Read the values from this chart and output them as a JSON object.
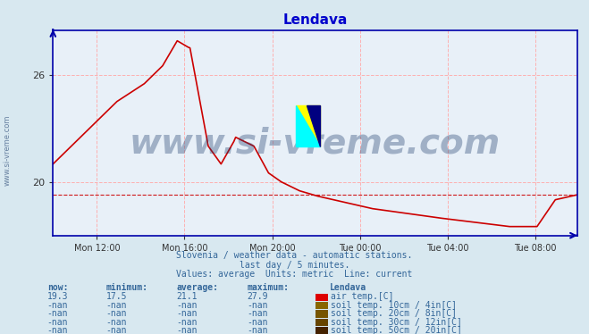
{
  "title": "Lendava",
  "title_color": "#0000cc",
  "bg_color": "#d8e8f0",
  "plot_bg_color": "#e8f0f8",
  "line_color": "#cc0000",
  "line_width": 1.2,
  "avg_line_color": "#cc0000",
  "avg_line_style": "--",
  "avg_value": 19.3,
  "y_min": 17.0,
  "y_max": 28.5,
  "yticks": [
    20,
    26
  ],
  "grid_color": "#ffaaaa",
  "grid_style": "--",
  "axis_color": "#0000aa",
  "xtick_labels": [
    "Mon 12:00",
    "Mon 16:00",
    "Mon 20:00",
    "Tue 00:00",
    "Tue 04:00",
    "Tue 08:00"
  ],
  "watermark": "www.si-vreme.com",
  "watermark_color": "#1a3a6a",
  "watermark_alpha": 0.35,
  "subtitle1": "Slovenia / weather data - automatic stations.",
  "subtitle2": "last day / 5 minutes.",
  "subtitle3": "Values: average  Units: metric  Line: current",
  "subtitle_color": "#336699",
  "legend_title": "Lendava",
  "legend_items": [
    {
      "label": "air temp.[C]",
      "color": "#dd0000"
    },
    {
      "label": "soil temp. 10cm / 4in[C]",
      "color": "#886600"
    },
    {
      "label": "soil temp. 20cm / 8in[C]",
      "color": "#775500"
    },
    {
      "label": "soil temp. 30cm / 12in[C]",
      "color": "#664400"
    },
    {
      "label": "soil temp. 50cm / 20in[C]",
      "color": "#442200"
    }
  ],
  "table_headers": [
    "now:",
    "minimum:",
    "average:",
    "maximum:"
  ],
  "table_rows": [
    [
      "19.3",
      "17.5",
      "21.1",
      "27.9"
    ],
    [
      "-nan",
      "-nan",
      "-nan",
      "-nan"
    ],
    [
      "-nan",
      "-nan",
      "-nan",
      "-nan"
    ],
    [
      "-nan",
      "-nan",
      "-nan",
      "-nan"
    ],
    [
      "-nan",
      "-nan",
      "-nan",
      "-nan"
    ]
  ],
  "sidebar_text": "www.si-vreme.com",
  "n_points": 288
}
